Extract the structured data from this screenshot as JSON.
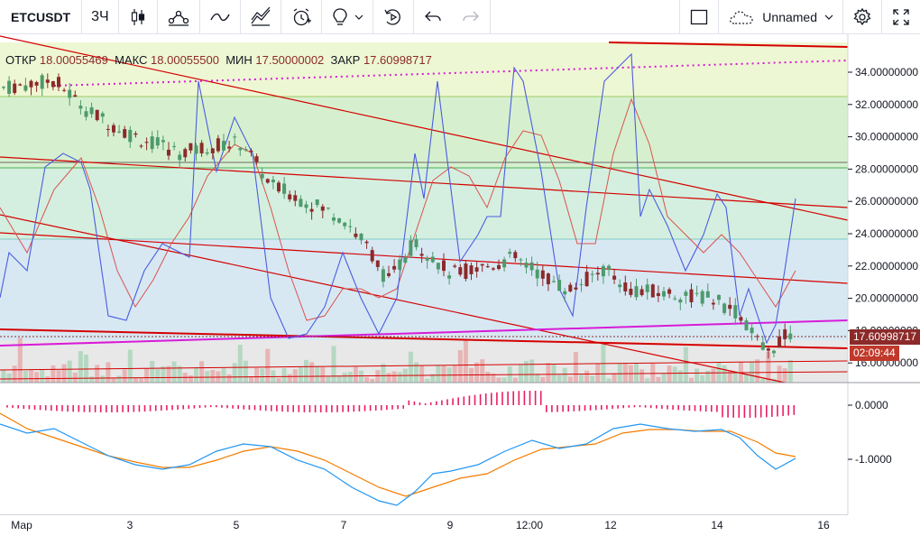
{
  "toolbar": {
    "symbol": "ETCUSDT",
    "interval": "3Ч",
    "layout_name": "Unnamed",
    "icons": [
      "candles-icon",
      "indicators-icon",
      "line-tool-icon",
      "fib-icon",
      "alert-icon",
      "idea-icon",
      "replay-icon",
      "undo-icon",
      "redo-icon",
      "fullscreen-rect-icon",
      "cloud-icon",
      "settings-icon",
      "expand-icon"
    ]
  },
  "ohlc": {
    "open_label": "ОТКР",
    "open": "18.00055469",
    "high_label": "МАКС",
    "high": "18.00055500",
    "low_label": "МИН",
    "low": "17.50000002",
    "close_label": "ЗАКР",
    "close": "17.60998717"
  },
  "price_axis": {
    "ticks": [
      "34.00000000",
      "32.00000000",
      "30.00000000",
      "28.00000000",
      "26.00000000",
      "24.00000000",
      "22.00000000",
      "20.00000000",
      "18.00000000",
      "16.00000000"
    ],
    "last_price": "17.60998717",
    "countdown": "02:09:44"
  },
  "macd_axis": {
    "ticks": [
      "0.0000",
      "-1.0000"
    ]
  },
  "time_axis": {
    "ticks": [
      "Мар",
      "3",
      "5",
      "7",
      "9",
      "12:00",
      "12",
      "14",
      "16"
    ]
  },
  "colors": {
    "bull": "#4e9a6c",
    "bear": "#8c2a2a",
    "price_tag": "#c0392b",
    "rsi_blue": "#4a5de0",
    "rsi_red": "#d9534f",
    "trend": "#d50000",
    "magenta": "#d81bd8",
    "macd_blue": "#2196f3",
    "macd_orange": "#f57c00",
    "hist": "#e91e63"
  }
}
